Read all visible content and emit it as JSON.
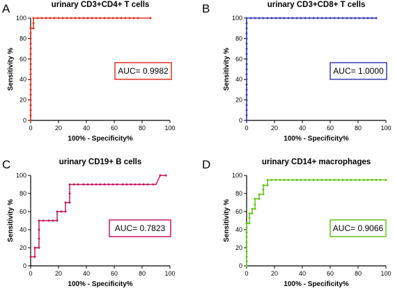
{
  "colors": {
    "panel_a": "#e0301e",
    "panel_b": "#3b3bb3",
    "panel_c": "#c2185b",
    "panel_d": "#66c21a"
  },
  "chart_data": [
    {
      "type": "line",
      "panel": "A",
      "title": "urinary CD3+CD4+ T cells",
      "xlabel": "100% - Specificity%",
      "ylabel": "Sensitivity %",
      "xlim": [
        0,
        100
      ],
      "ylim": [
        0,
        100
      ],
      "xticks": [
        "0",
        "20",
        "40",
        "60",
        "80",
        "100"
      ],
      "yticks": [
        "0",
        "20",
        "40",
        "60",
        "80",
        "100"
      ],
      "annotation": "AUC= 0.9982",
      "color": "#e0301e",
      "step_x": [
        0,
        0,
        2,
        2,
        86
      ],
      "step_y": [
        0,
        90,
        90,
        100,
        100
      ],
      "markers": [
        [
          0,
          0
        ],
        [
          0,
          5
        ],
        [
          0,
          10
        ],
        [
          0,
          15
        ],
        [
          0,
          20
        ],
        [
          0,
          25
        ],
        [
          0,
          30
        ],
        [
          0,
          35
        ],
        [
          0,
          40
        ],
        [
          0,
          45
        ],
        [
          0,
          50
        ],
        [
          0,
          55
        ],
        [
          0,
          60
        ],
        [
          0,
          65
        ],
        [
          0,
          70
        ],
        [
          0,
          75
        ],
        [
          0,
          80
        ],
        [
          0,
          85
        ],
        [
          0,
          90
        ],
        [
          2,
          90
        ],
        [
          2,
          95
        ],
        [
          2,
          100
        ],
        [
          5,
          100
        ],
        [
          8,
          100
        ],
        [
          11,
          100
        ],
        [
          14,
          100
        ],
        [
          17,
          100
        ],
        [
          20,
          100
        ],
        [
          23,
          100
        ],
        [
          26,
          100
        ],
        [
          29,
          100
        ],
        [
          32,
          100
        ],
        [
          35,
          100
        ],
        [
          38,
          100
        ],
        [
          41,
          100
        ],
        [
          44,
          100
        ],
        [
          47,
          100
        ],
        [
          50,
          100
        ],
        [
          53,
          100
        ],
        [
          56,
          100
        ],
        [
          59,
          100
        ],
        [
          62,
          100
        ],
        [
          65,
          100
        ],
        [
          68,
          100
        ],
        [
          71,
          100
        ],
        [
          74,
          100
        ],
        [
          77,
          100
        ],
        [
          86,
          100
        ]
      ]
    },
    {
      "type": "line",
      "panel": "B",
      "title": "urinary CD3+CD8+ T cells",
      "xlabel": "100% - Specificity%",
      "ylabel": "Sensitivity %",
      "xlim": [
        0,
        100
      ],
      "ylim": [
        0,
        100
      ],
      "xticks": [
        "0",
        "20",
        "40",
        "60",
        "80",
        "100"
      ],
      "yticks": [
        "0",
        "20",
        "40",
        "60",
        "80",
        "100"
      ],
      "annotation": "AUC= 1.0000",
      "color": "#3b3bb3",
      "step_x": [
        0,
        0,
        93
      ],
      "step_y": [
        0,
        100,
        100
      ],
      "markers": [
        [
          0,
          0
        ],
        [
          0,
          5
        ],
        [
          0,
          10
        ],
        [
          0,
          15
        ],
        [
          0,
          20
        ],
        [
          0,
          25
        ],
        [
          0,
          30
        ],
        [
          0,
          35
        ],
        [
          0,
          40
        ],
        [
          0,
          45
        ],
        [
          0,
          50
        ],
        [
          0,
          55
        ],
        [
          0,
          60
        ],
        [
          0,
          65
        ],
        [
          0,
          70
        ],
        [
          0,
          75
        ],
        [
          0,
          80
        ],
        [
          0,
          85
        ],
        [
          0,
          90
        ],
        [
          0,
          95
        ],
        [
          0,
          100
        ],
        [
          3,
          100
        ],
        [
          6,
          100
        ],
        [
          9,
          100
        ],
        [
          12,
          100
        ],
        [
          15,
          100
        ],
        [
          18,
          100
        ],
        [
          21,
          100
        ],
        [
          24,
          100
        ],
        [
          27,
          100
        ],
        [
          30,
          100
        ],
        [
          33,
          100
        ],
        [
          36,
          100
        ],
        [
          39,
          100
        ],
        [
          42,
          100
        ],
        [
          45,
          100
        ],
        [
          48,
          100
        ],
        [
          51,
          100
        ],
        [
          54,
          100
        ],
        [
          57,
          100
        ],
        [
          60,
          100
        ],
        [
          63,
          100
        ],
        [
          66,
          100
        ],
        [
          69,
          100
        ],
        [
          72,
          100
        ],
        [
          75,
          100
        ],
        [
          78,
          100
        ],
        [
          81,
          100
        ],
        [
          84,
          100
        ],
        [
          87,
          100
        ],
        [
          90,
          100
        ],
        [
          93,
          100
        ]
      ]
    },
    {
      "type": "line",
      "panel": "C",
      "title": "urinary CD19+ B cells",
      "xlabel": "100% - Specificity%",
      "ylabel": "Sensitivity %",
      "xlim": [
        0,
        100
      ],
      "ylim": [
        0,
        100
      ],
      "xticks": [
        "0",
        "20",
        "40",
        "60",
        "80",
        "100"
      ],
      "yticks": [
        "0",
        "20",
        "40",
        "60",
        "80",
        "100"
      ],
      "annotation": "AUC= 0.7823",
      "color": "#c2185b",
      "step_x": [
        0,
        3,
        3,
        6,
        6,
        19,
        19,
        25,
        25,
        28,
        28,
        90,
        93,
        97
      ],
      "step_y": [
        10,
        10,
        20,
        20,
        50,
        50,
        60,
        60,
        70,
        70,
        90,
        90,
        100,
        100
      ],
      "markers": [
        [
          0,
          10
        ],
        [
          3,
          10
        ],
        [
          3,
          20
        ],
        [
          6,
          20
        ],
        [
          6,
          30
        ],
        [
          6,
          40
        ],
        [
          6,
          50
        ],
        [
          9,
          50
        ],
        [
          13,
          50
        ],
        [
          16,
          50
        ],
        [
          19,
          50
        ],
        [
          19,
          60
        ],
        [
          22,
          60
        ],
        [
          25,
          60
        ],
        [
          25,
          70
        ],
        [
          28,
          70
        ],
        [
          28,
          80
        ],
        [
          28,
          90
        ],
        [
          31,
          90
        ],
        [
          34,
          90
        ],
        [
          38,
          90
        ],
        [
          41,
          90
        ],
        [
          44,
          90
        ],
        [
          47,
          90
        ],
        [
          50,
          90
        ],
        [
          53,
          90
        ],
        [
          56,
          90
        ],
        [
          59,
          90
        ],
        [
          62,
          90
        ],
        [
          66,
          90
        ],
        [
          69,
          90
        ],
        [
          72,
          90
        ],
        [
          75,
          90
        ],
        [
          78,
          90
        ],
        [
          81,
          90
        ],
        [
          84,
          90
        ],
        [
          88,
          90
        ],
        [
          93,
          100
        ],
        [
          97,
          100
        ]
      ]
    },
    {
      "type": "line",
      "panel": "D",
      "title": "urinary CD14+ macrophages",
      "xlabel": "100% - Specificity%",
      "ylabel": "Sensitivity %",
      "xlim": [
        0,
        100
      ],
      "ylim": [
        0,
        100
      ],
      "xticks": [
        "0",
        "20",
        "40",
        "60",
        "80",
        "100"
      ],
      "yticks": [
        "0",
        "20",
        "40",
        "60",
        "80",
        "100"
      ],
      "annotation": "AUC= 0.9066",
      "color": "#66c21a",
      "step_x": [
        0,
        0,
        2,
        2,
        4,
        4,
        6,
        6,
        9,
        9,
        12,
        12,
        15,
        15,
        100
      ],
      "step_y": [
        0,
        47,
        47,
        58,
        58,
        63,
        63,
        74,
        74,
        79,
        79,
        89,
        89,
        95,
        95
      ],
      "markers": [
        [
          0,
          0
        ],
        [
          0,
          5
        ],
        [
          0,
          10
        ],
        [
          0,
          16
        ],
        [
          0,
          21
        ],
        [
          0,
          26
        ],
        [
          0,
          32
        ],
        [
          0,
          37
        ],
        [
          0,
          42
        ],
        [
          0,
          47
        ],
        [
          2,
          47
        ],
        [
          2,
          53
        ],
        [
          2,
          58
        ],
        [
          4,
          58
        ],
        [
          4,
          63
        ],
        [
          6,
          63
        ],
        [
          6,
          68
        ],
        [
          6,
          74
        ],
        [
          9,
          74
        ],
        [
          9,
          79
        ],
        [
          12,
          79
        ],
        [
          12,
          84
        ],
        [
          12,
          89
        ],
        [
          15,
          89
        ],
        [
          15,
          95
        ],
        [
          18,
          95
        ],
        [
          21,
          95
        ],
        [
          24,
          95
        ],
        [
          27,
          95
        ],
        [
          30,
          95
        ],
        [
          33,
          95
        ],
        [
          36,
          95
        ],
        [
          39,
          95
        ],
        [
          42,
          95
        ],
        [
          45,
          95
        ],
        [
          48,
          95
        ],
        [
          51,
          95
        ],
        [
          54,
          95
        ],
        [
          57,
          95
        ],
        [
          60,
          95
        ],
        [
          63,
          95
        ],
        [
          66,
          95
        ],
        [
          69,
          95
        ],
        [
          72,
          95
        ],
        [
          75,
          95
        ],
        [
          78,
          95
        ],
        [
          81,
          95
        ],
        [
          84,
          95
        ],
        [
          87,
          95
        ],
        [
          90,
          95
        ],
        [
          93,
          95
        ],
        [
          96,
          95
        ],
        [
          100,
          95
        ]
      ]
    }
  ]
}
